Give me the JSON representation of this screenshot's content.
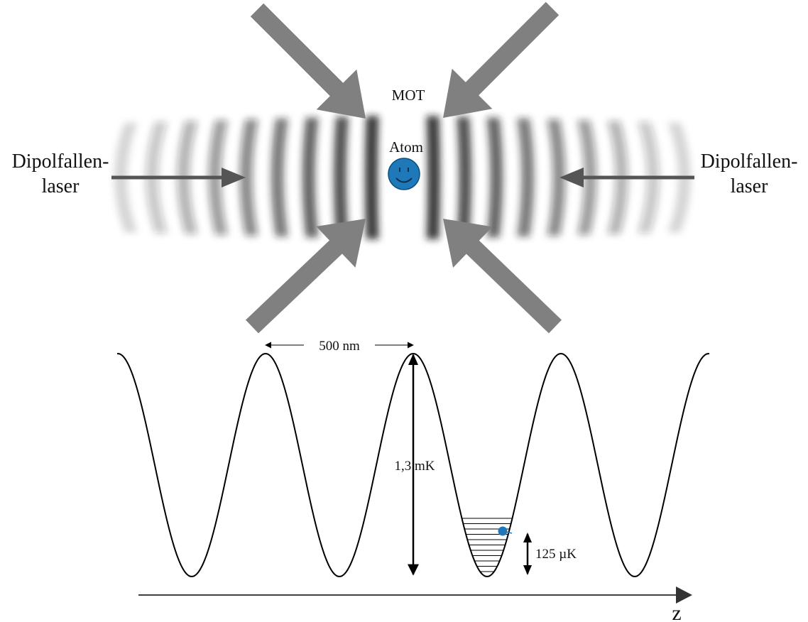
{
  "labels": {
    "mot": "MOT",
    "atom": "Atom",
    "laser_left_line1": "Dipolfallen-",
    "laser_left_line2": "laser",
    "laser_right_line1": "Dipolfallen-",
    "laser_right_line2": "laser",
    "period": "500 nm",
    "depth": "1,3 mK",
    "level_spacing": "125 µK",
    "axis": "z"
  },
  "colors": {
    "mot_beam": "#808080",
    "dipole_beam": "#555555",
    "atom": "#1f78b8",
    "fringe": "#1a1a1a",
    "line": "#000000"
  },
  "icons": {
    "atom_face": "smiley-face-icon",
    "axis_arrow": "arrow-right-icon"
  }
}
